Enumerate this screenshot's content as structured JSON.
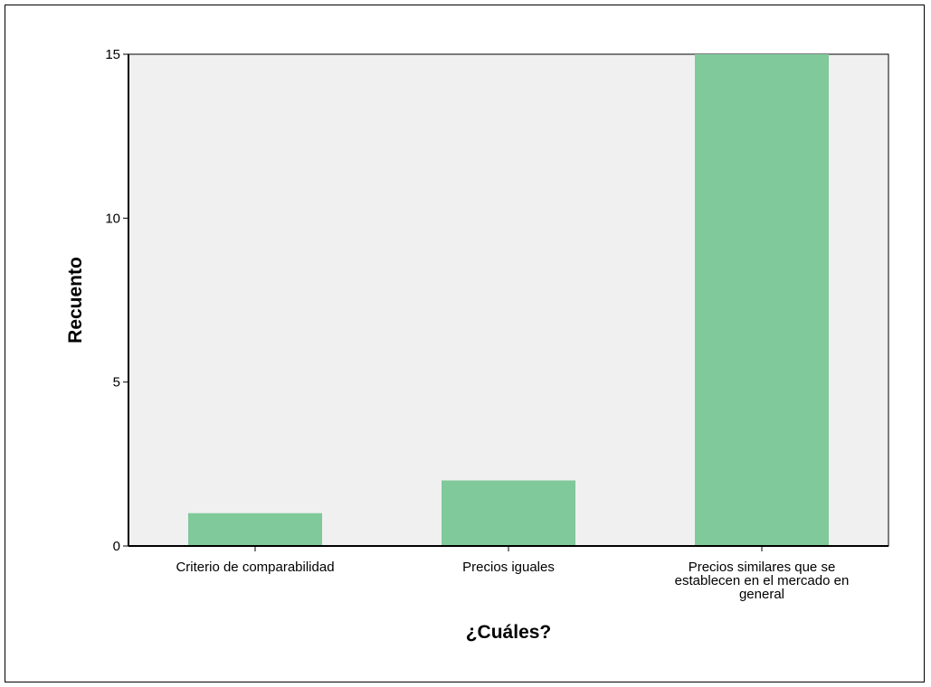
{
  "chart_data": {
    "type": "bar",
    "categories": [
      "Criterio de comparabilidad",
      "Precios iguales",
      "Precios similares que se establecen en el mercado en general"
    ],
    "category_label_lines": [
      [
        "Criterio de comparabilidad"
      ],
      [
        "Precios iguales"
      ],
      [
        "Precios similares que se",
        "establecen en el mercado en",
        "general"
      ]
    ],
    "values": [
      1,
      2,
      15
    ],
    "xlabel": "¿Cuáles?",
    "ylabel": "Recuento",
    "ylim": [
      0,
      15
    ],
    "yticks": [
      0,
      5,
      10,
      15
    ],
    "grid": false,
    "colors": {
      "bar": "#80C99A",
      "plot_background": "#F0F0F0",
      "axis": "#000000"
    }
  }
}
